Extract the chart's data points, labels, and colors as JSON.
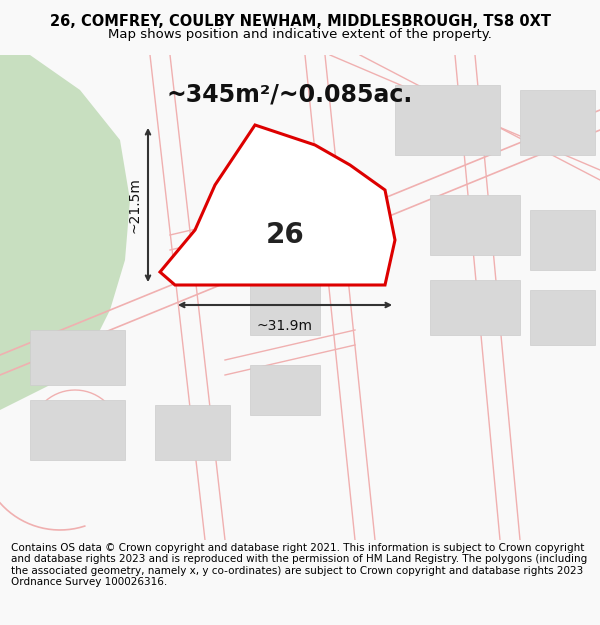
{
  "title_line1": "26, COMFREY, COULBY NEWHAM, MIDDLESBROUGH, TS8 0XT",
  "title_line2": "Map shows position and indicative extent of the property.",
  "area_text": "~345m²/~0.085ac.",
  "width_label": "~31.9m",
  "height_label": "~21.5m",
  "number_label": "26",
  "footer_text": "Contains OS data © Crown copyright and database right 2021. This information is subject to Crown copyright and database rights 2023 and is reproduced with the permission of HM Land Registry. The polygons (including the associated geometry, namely x, y co-ordinates) are subject to Crown copyright and database rights 2023 Ordnance Survey 100026316.",
  "bg_color": "#f9f9f9",
  "map_bg_color": "#ffffff",
  "plot_color_fill": "#ffffff",
  "plot_color_edge": "#dd0000",
  "road_color": "#f0b0b0",
  "building_color": "#d8d8d8",
  "building_edge": "#cccccc",
  "green_color": "#c8dfc0",
  "title_fontsize": 10.5,
  "subtitle_fontsize": 9.5,
  "footer_fontsize": 7.5,
  "number_fontsize": 20,
  "area_fontsize": 17,
  "dim_fontsize": 10
}
